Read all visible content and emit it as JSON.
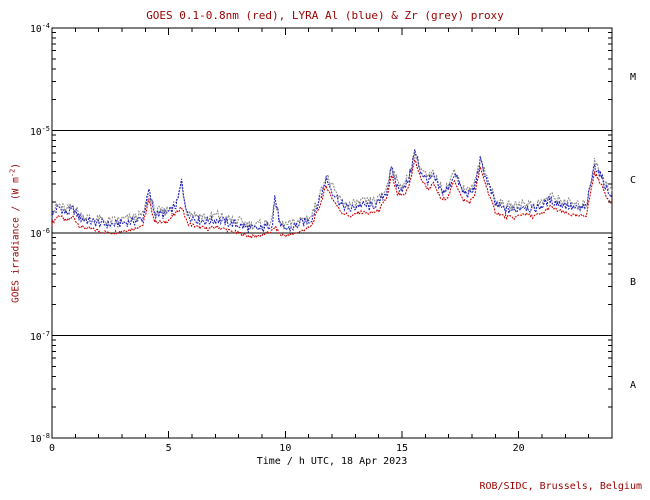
{
  "chart_data": {
    "type": "line",
    "title": "GOES 0.1-0.8nm (red), LYRA Al (blue) & Zr (grey) proxy",
    "xlabel": "Time / h UTC, 18 Apr 2023",
    "ylabel": "GOES irradiance / (W m-2)",
    "ylabel_pre": "GOES irradiance / (W m",
    "ylabel_sup": "-2",
    "ylabel_post": ")",
    "footer": "ROB/SIDC, Brussels, Belgium",
    "x_range": [
      0,
      24
    ],
    "y_log_range": [
      -8,
      -4
    ],
    "x_major_ticks": [
      0,
      5,
      10,
      15,
      20
    ],
    "y_decades": [
      -4,
      -5,
      -6,
      -7,
      -8
    ],
    "y_tick_labels": [
      {
        "base": "10",
        "exp": -4
      },
      {
        "base": "10",
        "exp": -5
      },
      {
        "base": "10",
        "exp": -6
      },
      {
        "base": "10",
        "exp": -7
      },
      {
        "base": "10",
        "exp": -8
      }
    ],
    "hlines": [
      1e-05,
      1e-06,
      1e-07
    ],
    "class_labels": [
      {
        "label": "M",
        "log_center": -4.5
      },
      {
        "label": "C",
        "log_center": -5.5
      },
      {
        "label": "B",
        "log_center": -6.5
      },
      {
        "label": "A",
        "log_center": -7.5
      }
    ],
    "colors": {
      "heading": "#990000",
      "text": "#000000",
      "frame": "#000000",
      "goes_red": "#cc0000",
      "lyra_al_blue": "#2222bb",
      "lyra_zr_grey": "#8a8a8a"
    },
    "values_unit": "W m-2",
    "values_scale": 1e-06,
    "x": [
      0.0,
      0.3,
      0.6,
      0.9,
      1.2,
      1.6,
      2.0,
      2.5,
      3.0,
      3.5,
      3.9,
      4.15,
      4.4,
      4.8,
      5.1,
      5.35,
      5.55,
      5.8,
      6.2,
      6.7,
      7.1,
      7.6,
      8.0,
      8.5,
      9.0,
      9.45,
      9.55,
      9.8,
      10.2,
      10.7,
      11.1,
      11.5,
      11.75,
      12.0,
      12.4,
      12.8,
      13.2,
      13.6,
      14.0,
      14.35,
      14.55,
      14.8,
      15.1,
      15.3,
      15.55,
      15.8,
      16.1,
      16.35,
      16.7,
      17.0,
      17.25,
      17.6,
      17.9,
      18.1,
      18.35,
      18.7,
      19.0,
      19.4,
      19.8,
      20.2,
      20.6,
      21.0,
      21.35,
      21.7,
      22.1,
      22.5,
      22.9,
      23.25,
      23.5,
      23.8,
      24.0
    ],
    "series": [
      {
        "id": "goes-xrs-red",
        "name": "GOES 0.1-0.8nm",
        "color": "#cc0000",
        "values": [
          1.25,
          1.5,
          1.3,
          1.45,
          1.15,
          1.1,
          1.05,
          1.0,
          1.05,
          1.1,
          1.2,
          2.1,
          1.3,
          1.25,
          1.4,
          1.6,
          1.8,
          1.25,
          1.15,
          1.1,
          1.15,
          1.05,
          1.0,
          0.92,
          0.95,
          1.05,
          1.15,
          0.95,
          0.95,
          1.05,
          1.15,
          1.9,
          2.9,
          2.2,
          1.6,
          1.45,
          1.6,
          1.55,
          1.65,
          2.2,
          3.6,
          2.4,
          2.3,
          2.9,
          5.2,
          3.4,
          2.7,
          3.0,
          2.1,
          2.3,
          3.3,
          2.1,
          2.0,
          2.3,
          4.3,
          2.5,
          1.6,
          1.45,
          1.4,
          1.55,
          1.45,
          1.55,
          1.8,
          1.65,
          1.55,
          1.45,
          1.5,
          3.9,
          3.1,
          2.2,
          2.0
        ]
      },
      {
        "id": "lyra-al-blue",
        "name": "LYRA Al proxy",
        "color": "#2222bb",
        "values": [
          1.5,
          1.8,
          1.55,
          1.7,
          1.4,
          1.3,
          1.25,
          1.2,
          1.25,
          1.3,
          1.4,
          2.6,
          1.55,
          1.5,
          1.65,
          1.9,
          3.2,
          1.5,
          1.35,
          1.3,
          1.35,
          1.25,
          1.2,
          1.1,
          1.1,
          1.25,
          2.3,
          1.1,
          1.1,
          1.25,
          1.35,
          2.2,
          3.4,
          2.6,
          1.9,
          1.7,
          1.9,
          1.8,
          1.95,
          2.6,
          4.2,
          2.8,
          2.7,
          3.4,
          6.3,
          4.0,
          3.2,
          3.5,
          2.5,
          2.7,
          3.9,
          2.5,
          2.4,
          2.7,
          5.1,
          3.0,
          1.9,
          1.7,
          1.65,
          1.85,
          1.7,
          1.85,
          2.1,
          1.95,
          1.85,
          1.7,
          1.8,
          4.6,
          3.7,
          2.6,
          2.4
        ]
      },
      {
        "id": "lyra-zr-grey",
        "name": "LYRA Zr proxy",
        "color": "#8a8a8a",
        "values": [
          1.6,
          1.9,
          1.65,
          1.85,
          1.5,
          1.4,
          1.35,
          1.3,
          1.35,
          1.4,
          1.5,
          2.4,
          1.65,
          1.6,
          1.8,
          2.0,
          3.0,
          1.6,
          1.5,
          1.4,
          1.5,
          1.35,
          1.3,
          1.2,
          1.2,
          1.35,
          2.1,
          1.2,
          1.2,
          1.35,
          1.45,
          2.4,
          3.7,
          2.8,
          2.0,
          1.85,
          2.0,
          2.0,
          2.1,
          2.8,
          4.6,
          3.1,
          2.9,
          3.7,
          6.0,
          4.3,
          3.4,
          3.8,
          2.7,
          2.9,
          4.2,
          2.7,
          2.55,
          2.9,
          5.4,
          3.2,
          2.05,
          1.85,
          1.8,
          2.0,
          1.85,
          2.0,
          2.3,
          2.1,
          2.0,
          1.85,
          1.9,
          4.9,
          4.0,
          2.8,
          2.6
        ]
      }
    ]
  }
}
